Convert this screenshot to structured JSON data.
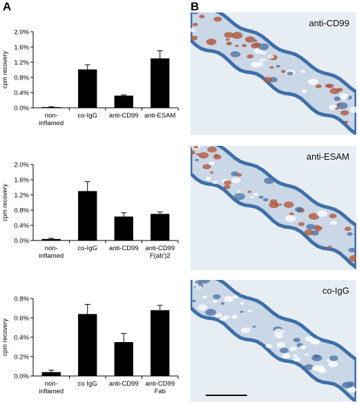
{
  "figure": {
    "panel_a_letter": "A",
    "panel_b_letter": "B"
  },
  "chart_data": [
    {
      "type": "bar",
      "ylabel": "cpm recovery",
      "ylim": [
        0,
        2.0
      ],
      "yticks": [
        "0.0%",
        "0.4%",
        "0.8%",
        "1.2%",
        "1.6%",
        "2.0%"
      ],
      "categories": [
        [
          "non-",
          "inflamed"
        ],
        [
          "co-IgG"
        ],
        [
          "anti-CD99"
        ],
        [
          "anti-ESAM"
        ]
      ],
      "values": [
        0.02,
        1.01,
        0.32,
        1.3
      ],
      "errors": [
        0.01,
        0.12,
        0.02,
        0.2
      ]
    },
    {
      "type": "bar",
      "ylabel": "cpm recovery",
      "ylim": [
        0,
        2.0
      ],
      "yticks": [
        "0.0%",
        "0.4%",
        "0.8%",
        "1.2%",
        "1.6%",
        "2.0%"
      ],
      "categories": [
        [
          "non-",
          "inflamed"
        ],
        [
          "co-IgG"
        ],
        [
          "anti-CD99"
        ],
        [
          "anti-CD99",
          "F(ab')2"
        ]
      ],
      "values": [
        0.04,
        1.3,
        0.63,
        0.7
      ],
      "errors": [
        0.02,
        0.25,
        0.1,
        0.05
      ]
    },
    {
      "type": "bar",
      "ylabel": "cpm recovery",
      "ylim": [
        0,
        0.8
      ],
      "yticks": [
        "0.0%",
        "0.2%",
        "0.4%",
        "0.6%",
        "0.8%"
      ],
      "categories": [
        [
          "non-",
          "inflamed"
        ],
        [
          "co IgG"
        ],
        [
          "anti-CD99"
        ],
        [
          "anti-CD99",
          "Fab"
        ]
      ],
      "values": [
        0.04,
        0.64,
        0.35,
        0.68
      ],
      "errors": [
        0.02,
        0.1,
        0.09,
        0.05
      ]
    }
  ],
  "micrographs": [
    {
      "label": "anti-CD99",
      "stain_color": "#b0553a"
    },
    {
      "label": "anti-ESAM",
      "stain_color": "#b45a40"
    },
    {
      "label": "co-IgG",
      "stain_color": "#a06a5a"
    }
  ],
  "colors": {
    "bar": "#000000",
    "tissue_edge": "#3f6fa8",
    "tissue_fill": "#c9d7e6",
    "background_slide": "#e6edf3"
  }
}
